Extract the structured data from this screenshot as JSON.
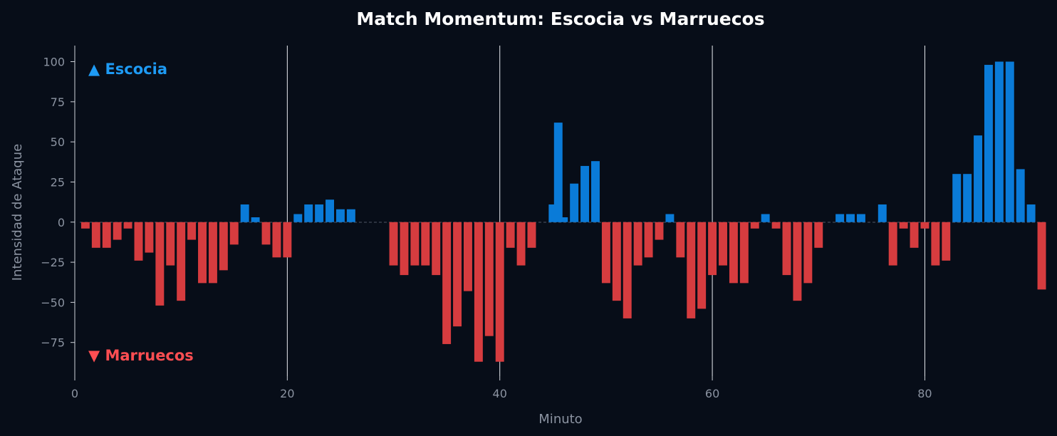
{
  "chart_data": {
    "type": "bar",
    "title": "Match Momentum: Escocia vs Marruecos",
    "xlabel": "Minuto",
    "ylabel": "Intensidad de Ataque",
    "xlim": [
      0,
      91.5
    ],
    "ylim": [
      -96,
      110
    ],
    "x_ticks": [
      0,
      20,
      40,
      60,
      80
    ],
    "y_ticks": [
      -75,
      -50,
      -25,
      0,
      25,
      50,
      75,
      100
    ],
    "vertical_lines": [
      20,
      40,
      60,
      80
    ],
    "legend": {
      "top_label": "▲ Escocia",
      "bottom_label": "▼ Marruecos"
    },
    "colors": {
      "positive": "#0a7bd8",
      "negative": "#d63c3f",
      "label_positive": "#1e9bf5",
      "label_negative": "#ff4e52",
      "background": "#070d18",
      "axis": "#cfd3da",
      "text": "#8b93a1"
    },
    "bar_width": 0.8,
    "series": [
      {
        "values": [
          [
            1,
            -4
          ],
          [
            2,
            -16
          ],
          [
            3,
            -16
          ],
          [
            4,
            -11
          ],
          [
            5,
            -4
          ],
          [
            6,
            -24
          ],
          [
            7,
            -19
          ],
          [
            8,
            -52
          ],
          [
            9,
            -27
          ],
          [
            10,
            -49
          ],
          [
            11,
            -11
          ],
          [
            12,
            -38
          ],
          [
            13,
            -38
          ],
          [
            14,
            -30
          ],
          [
            15,
            -14
          ],
          [
            16,
            11
          ],
          [
            17,
            3
          ],
          [
            18,
            -14
          ],
          [
            19,
            -22
          ],
          [
            20,
            -22
          ],
          [
            21,
            5
          ],
          [
            22,
            11
          ],
          [
            23,
            11
          ],
          [
            24,
            14
          ],
          [
            25,
            8
          ],
          [
            26,
            8
          ],
          [
            30,
            -27
          ],
          [
            31,
            -33
          ],
          [
            32,
            -27
          ],
          [
            33,
            -27
          ],
          [
            34,
            -33
          ],
          [
            35,
            -76
          ],
          [
            36,
            -65
          ],
          [
            37,
            -43
          ],
          [
            38,
            -87
          ],
          [
            39,
            -71
          ],
          [
            40,
            -87
          ],
          [
            41,
            -16
          ],
          [
            42,
            -27
          ],
          [
            43,
            -16
          ],
          [
            45,
            11
          ],
          [
            45.5,
            62
          ],
          [
            46,
            3
          ],
          [
            47,
            24
          ],
          [
            48,
            35
          ],
          [
            49,
            38
          ],
          [
            50,
            -38
          ],
          [
            51,
            -49
          ],
          [
            52,
            -60
          ],
          [
            53,
            -27
          ],
          [
            54,
            -22
          ],
          [
            55,
            -11
          ],
          [
            56,
            5
          ],
          [
            57,
            -22
          ],
          [
            58,
            -60
          ],
          [
            59,
            -54
          ],
          [
            60,
            -33
          ],
          [
            61,
            -27
          ],
          [
            62,
            -38
          ],
          [
            63,
            -38
          ],
          [
            64,
            -4
          ],
          [
            65,
            5
          ],
          [
            66,
            -4
          ],
          [
            67,
            -33
          ],
          [
            68,
            -49
          ],
          [
            69,
            -38
          ],
          [
            70,
            -16
          ],
          [
            72,
            5
          ],
          [
            73,
            5
          ],
          [
            74,
            5
          ],
          [
            76,
            11
          ],
          [
            77,
            -27
          ],
          [
            78,
            -4
          ],
          [
            79,
            -16
          ],
          [
            80,
            -4
          ],
          [
            81,
            -27
          ],
          [
            82,
            -24
          ],
          [
            83,
            30
          ],
          [
            84,
            30
          ],
          [
            85,
            54
          ],
          [
            86,
            98
          ],
          [
            87,
            100
          ],
          [
            88,
            100
          ],
          [
            89,
            33
          ],
          [
            90,
            11
          ],
          [
            91,
            -42
          ]
        ]
      }
    ]
  }
}
